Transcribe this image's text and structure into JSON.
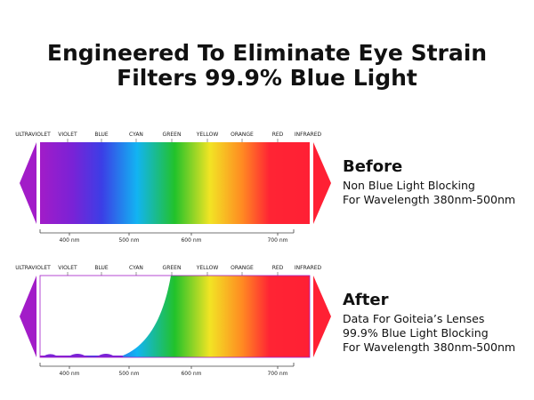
{
  "header": {
    "title_lines": [
      "Engineered To Eliminate Eye Strain",
      "Filters 99.9% Blue Light"
    ]
  },
  "spectrum_labels": [
    "ULTRAVIOLET",
    "VIOLET",
    "BLUE",
    "CYAN",
    "GREEN",
    "YELLOW",
    "ORANGE",
    "RED",
    "INFRARED"
  ],
  "wavelength_labels": [
    "400 nm",
    "500 nm",
    "600 nm",
    "700 nm"
  ],
  "panels": [
    {
      "heading": "Before",
      "lines": [
        "Non Blue Light Blocking",
        "For Wavelength 380nm-500nm"
      ]
    },
    {
      "heading": "After",
      "lines": [
        "Data For Goiteia’s Lenses",
        "99.9% Blue Light Blocking",
        "For Wavelength 380nm-500nm"
      ]
    }
  ]
}
